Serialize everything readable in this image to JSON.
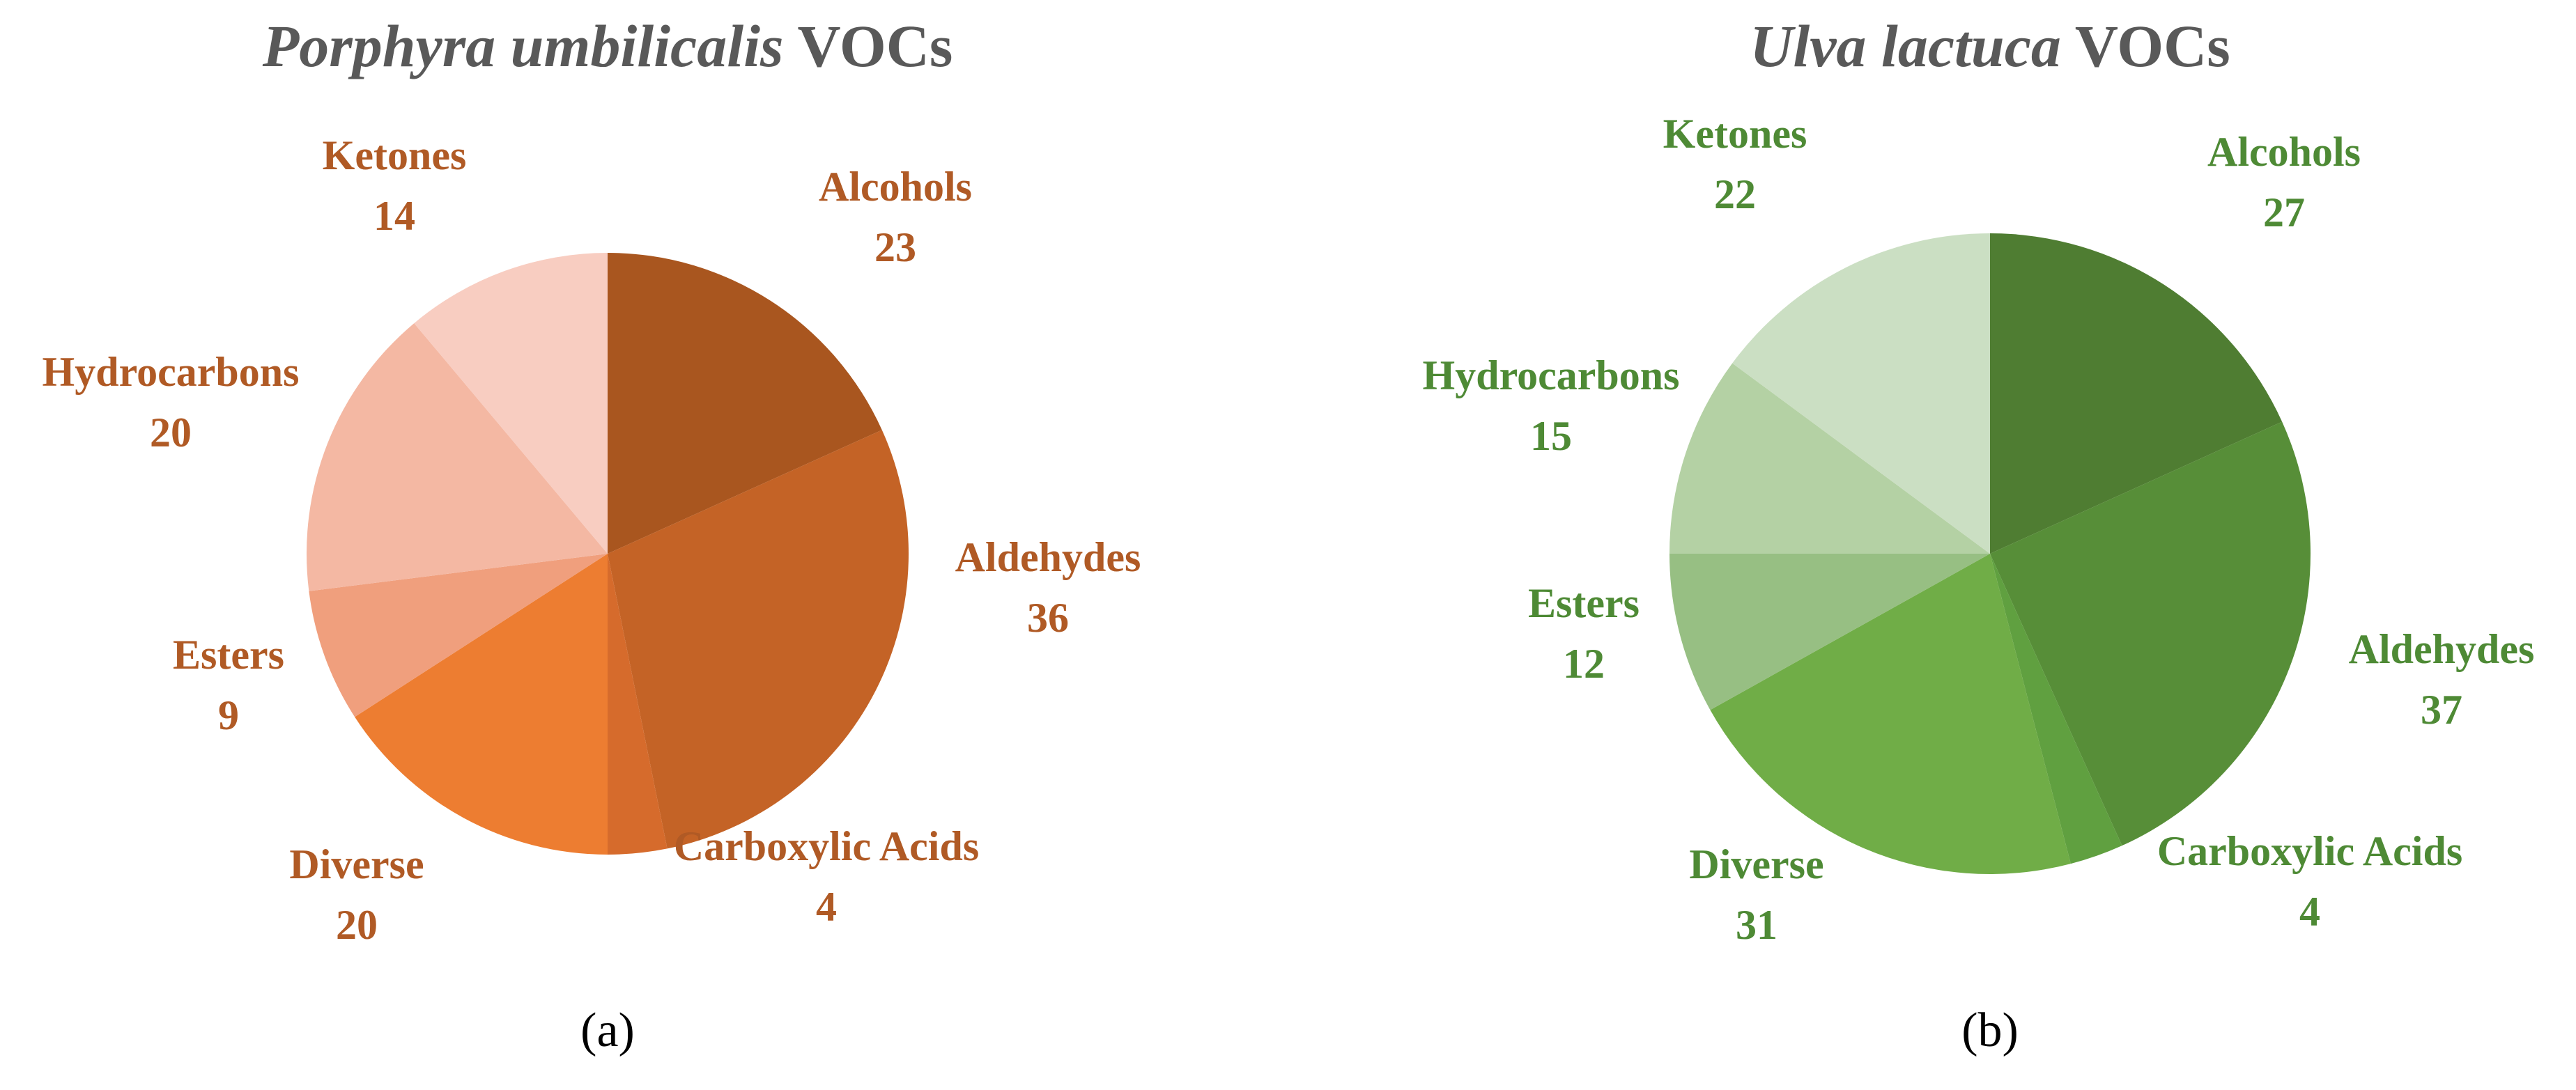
{
  "chart_data": [
    {
      "type": "pie",
      "title": {
        "species": "Porphyra umbilicalis",
        "rest": "VOCs"
      },
      "caption": "(a)",
      "categories": [
        "Alcohols",
        "Aldehydes",
        "Carboxylic Acids",
        "Diverse",
        "Esters",
        "Hydrocarbons",
        "Ketones"
      ],
      "values": [
        23,
        36,
        4,
        20,
        9,
        20,
        14
      ],
      "colors": [
        "#a9561f",
        "#c46326",
        "#d66b2c",
        "#ed7d31",
        "#f09f7d",
        "#f4b8a3",
        "#f8cdc1"
      ],
      "label_color": "#b05a25"
    },
    {
      "type": "pie",
      "title": {
        "species": "Ulva lactuca",
        "rest": "VOCs"
      },
      "caption": "(b)",
      "categories": [
        "Alcohols",
        "Aldehydes",
        "Carboxylic Acids",
        "Diverse",
        "Esters",
        "Hydrocarbons",
        "Ketones"
      ],
      "values": [
        27,
        37,
        4,
        31,
        12,
        15,
        22
      ],
      "colors": [
        "#4f7d32",
        "#578e38",
        "#60a040",
        "#70ad47",
        "#97bf83",
        "#b4d1a4",
        "#cbdfc3"
      ],
      "label_color": "#4e8a35"
    }
  ]
}
